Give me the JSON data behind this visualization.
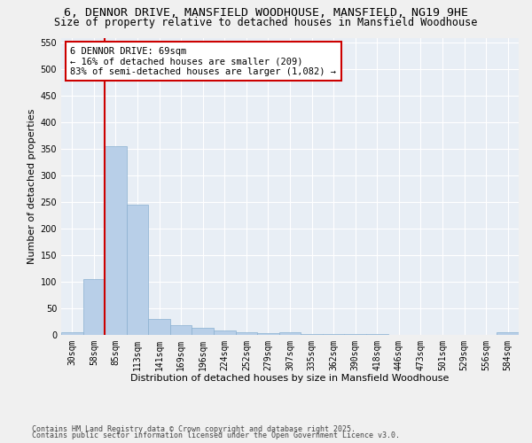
{
  "title1": "6, DENNOR DRIVE, MANSFIELD WOODHOUSE, MANSFIELD, NG19 9HE",
  "title2": "Size of property relative to detached houses in Mansfield Woodhouse",
  "xlabel": "Distribution of detached houses by size in Mansfield Woodhouse",
  "ylabel": "Number of detached properties",
  "categories": [
    "30sqm",
    "58sqm",
    "85sqm",
    "113sqm",
    "141sqm",
    "169sqm",
    "196sqm",
    "224sqm",
    "252sqm",
    "279sqm",
    "307sqm",
    "335sqm",
    "362sqm",
    "390sqm",
    "418sqm",
    "446sqm",
    "473sqm",
    "501sqm",
    "529sqm",
    "556sqm",
    "584sqm"
  ],
  "values": [
    5,
    105,
    355,
    245,
    30,
    18,
    13,
    8,
    5,
    2,
    4,
    1,
    1,
    1,
    1,
    0,
    0,
    0,
    0,
    0,
    4
  ],
  "bar_color": "#b8cfe8",
  "bar_edge_color": "#8ab0d0",
  "vline_x_idx": 1.5,
  "vline_color": "#cc0000",
  "annotation_title": "6 DENNOR DRIVE: 69sqm",
  "annotation_line1": "← 16% of detached houses are smaller (209)",
  "annotation_line2": "83% of semi-detached houses are larger (1,082) →",
  "annotation_box_color": "#ffffff",
  "annotation_box_edge": "#cc0000",
  "ylim": [
    0,
    560
  ],
  "yticks": [
    0,
    50,
    100,
    150,
    200,
    250,
    300,
    350,
    400,
    450,
    500,
    550
  ],
  "bg_color": "#e8eef5",
  "fig_bg_color": "#f0f0f0",
  "footer1": "Contains HM Land Registry data © Crown copyright and database right 2025.",
  "footer2": "Contains public sector information licensed under the Open Government Licence v3.0.",
  "title1_fontsize": 9.5,
  "title2_fontsize": 8.5,
  "xlabel_fontsize": 8,
  "ylabel_fontsize": 8,
  "tick_fontsize": 7,
  "ann_fontsize": 7.5,
  "footer_fontsize": 6
}
